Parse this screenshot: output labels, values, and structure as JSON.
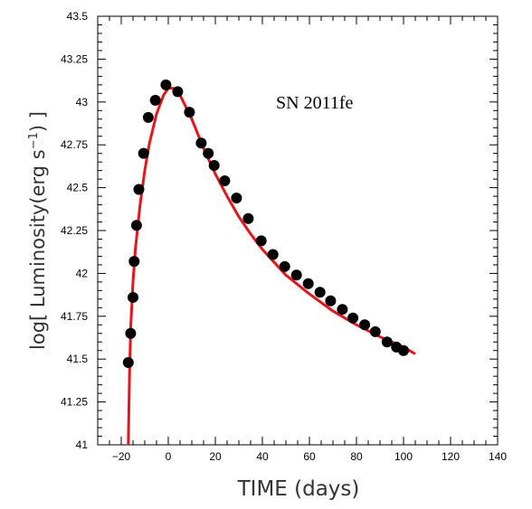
{
  "chart_data": {
    "type": "scatter",
    "xlabel": "TIME (days)",
    "ylabel_main": "log[ Luminosity(erg s",
    "ylabel_sup": "−1",
    "ylabel_tail": ") ]",
    "annotation": "SN 2011fe",
    "xlim": [
      -30,
      140
    ],
    "ylim": [
      41,
      43.5
    ],
    "x_ticks": [
      -20,
      0,
      20,
      40,
      60,
      80,
      100,
      120,
      140
    ],
    "x_tick_labels": [
      "−20",
      "0",
      "20",
      "40",
      "60",
      "80",
      "100",
      "120",
      "140"
    ],
    "y_ticks": [
      41,
      41.25,
      41.5,
      41.75,
      42,
      42.25,
      42.5,
      42.75,
      43,
      43.25,
      43.5
    ],
    "y_tick_labels": [
      "41",
      "41.25",
      "41.5",
      "41.75",
      "42",
      "42.25",
      "42.5",
      "42.75",
      "43",
      "43.25",
      "43.5"
    ],
    "series": [
      {
        "kind": "points",
        "color": "#000000",
        "x": [
          -17,
          -16,
          -15,
          -14.5,
          -13.5,
          -12.5,
          -10.5,
          -8.5,
          -5.5,
          -1,
          4,
          9,
          14,
          17,
          19.5,
          24,
          29,
          34,
          39.5,
          44.5,
          49.5,
          54.5,
          59.5,
          64.5,
          69,
          74,
          78.5,
          83.5,
          88,
          93,
          97,
          100
        ],
        "y": [
          41.48,
          41.65,
          41.86,
          42.07,
          42.28,
          42.49,
          42.7,
          42.91,
          43.01,
          43.1,
          43.06,
          42.94,
          42.76,
          42.7,
          42.63,
          42.54,
          42.44,
          42.32,
          42.19,
          42.11,
          42.04,
          41.99,
          41.94,
          41.89,
          41.84,
          41.79,
          41.74,
          41.7,
          41.66,
          41.6,
          41.57,
          41.55
        ]
      },
      {
        "kind": "line",
        "color": "#e8141c",
        "x": [
          -17,
          -16.5,
          -16,
          -15,
          -14,
          -12,
          -10,
          -8,
          -5,
          -2,
          0,
          2,
          5,
          10,
          15,
          20,
          25,
          30,
          35,
          40,
          50,
          60,
          70,
          80,
          90,
          100,
          105
        ],
        "y": [
          41.0,
          41.4,
          41.68,
          41.95,
          42.14,
          42.4,
          42.6,
          42.76,
          42.93,
          43.04,
          43.08,
          43.08,
          43.04,
          42.9,
          42.73,
          42.58,
          42.45,
          42.33,
          42.23,
          42.14,
          41.99,
          41.88,
          41.78,
          41.7,
          41.63,
          41.57,
          41.53
        ]
      }
    ]
  }
}
